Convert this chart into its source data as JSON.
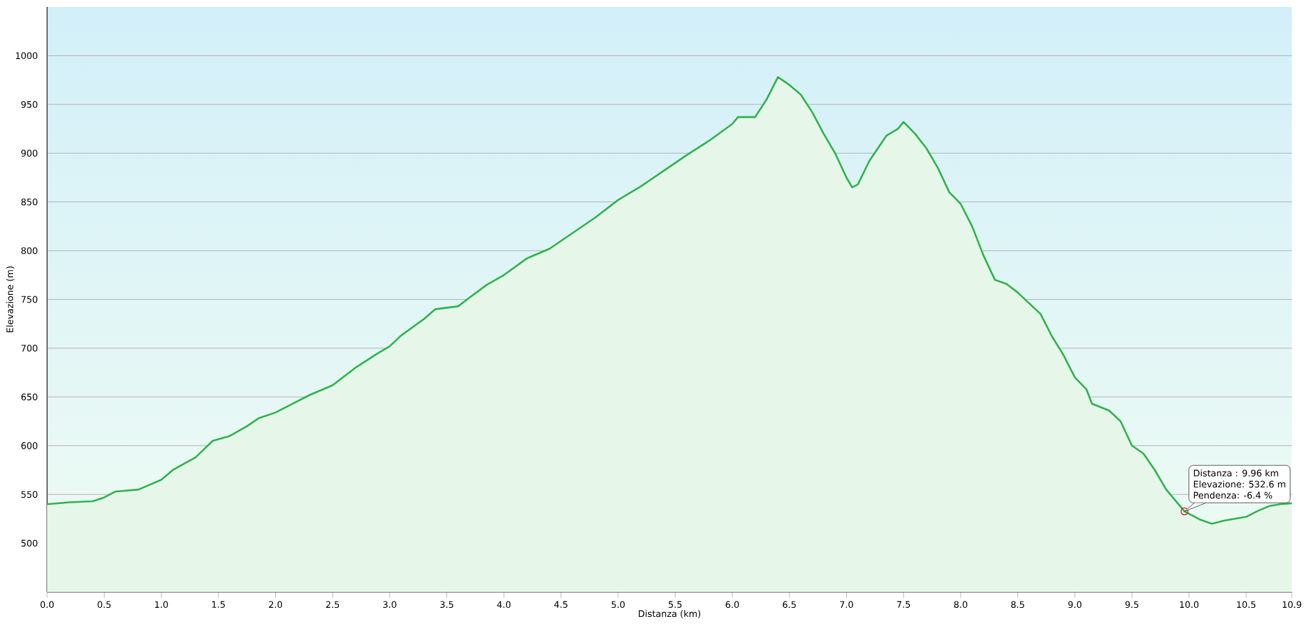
{
  "chart_data": {
    "type": "area",
    "xlabel": "Distanza  (km)",
    "ylabel": "Elevazione (m)",
    "x": [
      0.0,
      0.2,
      0.4,
      0.5,
      0.6,
      0.8,
      1.0,
      1.1,
      1.3,
      1.45,
      1.6,
      1.75,
      1.85,
      2.0,
      2.15,
      2.3,
      2.5,
      2.7,
      2.9,
      3.0,
      3.1,
      3.3,
      3.4,
      3.6,
      3.7,
      3.85,
      4.0,
      4.2,
      4.4,
      4.6,
      4.8,
      5.0,
      5.2,
      5.4,
      5.6,
      5.8,
      6.0,
      6.05,
      6.2,
      6.3,
      6.4,
      6.5,
      6.6,
      6.7,
      6.8,
      6.9,
      7.0,
      7.05,
      7.1,
      7.2,
      7.35,
      7.45,
      7.5,
      7.6,
      7.7,
      7.8,
      7.9,
      8.0,
      8.1,
      8.2,
      8.3,
      8.4,
      8.5,
      8.6,
      8.7,
      8.8,
      8.9,
      9.0,
      9.1,
      9.15,
      9.3,
      9.4,
      9.5,
      9.6,
      9.7,
      9.8,
      9.96,
      10.1,
      10.2,
      10.3,
      10.5,
      10.6,
      10.7,
      10.8,
      10.9
    ],
    "series": [
      {
        "color": "#2db34a",
        "values": [
          540,
          542,
          543,
          547,
          553,
          555,
          565,
          575,
          588,
          605,
          610,
          620,
          628,
          634,
          643,
          652,
          662,
          680,
          695,
          702,
          713,
          730,
          740,
          743,
          752,
          765,
          775,
          792,
          802,
          818,
          834,
          852,
          866,
          882,
          898,
          913,
          930,
          937,
          937,
          955,
          978,
          970,
          960,
          942,
          920,
          900,
          875,
          865,
          868,
          892,
          918,
          925,
          932,
          920,
          905,
          885,
          860,
          848,
          825,
          795,
          770,
          766,
          757,
          746,
          735,
          712,
          693,
          670,
          658,
          643,
          636,
          625,
          600,
          592,
          575,
          555,
          532.6,
          524,
          520,
          523,
          527,
          533,
          538,
          540,
          541
        ]
      }
    ],
    "xlim": [
      0,
      10.9
    ],
    "ylim": [
      450,
      1050
    ],
    "xticks": [
      {
        "value": 0,
        "label": "0.0"
      },
      0.5,
      {
        "value": 1,
        "label": "1.0"
      },
      1.5,
      {
        "value": 2,
        "label": "2.0"
      },
      2.5,
      {
        "value": 3,
        "label": "3.0"
      },
      3.5,
      {
        "value": 4,
        "label": "4.0"
      },
      4.5,
      {
        "value": 5,
        "label": "5.0"
      },
      5.5,
      {
        "value": 6,
        "label": "6.0"
      },
      6.5,
      {
        "value": 7,
        "label": "7.0"
      },
      7.5,
      {
        "value": 8,
        "label": "8.0"
      },
      8.5,
      {
        "value": 9,
        "label": "9.0"
      },
      9.5,
      {
        "value": 10,
        "label": "10.0"
      },
      10.5,
      10.9
    ],
    "yticks": [
      500,
      550,
      600,
      650,
      700,
      750,
      800,
      850,
      900,
      950,
      1000
    ],
    "grid": "y",
    "marker": "none",
    "line_style": "solid",
    "annotations": [
      "Distanza  : 9.96 km",
      "Elevazione: 532.6 m",
      {
        "text": "Pendenza: -6.4 %",
        "x": 9.96,
        "y": 532.6
      }
    ]
  }
}
